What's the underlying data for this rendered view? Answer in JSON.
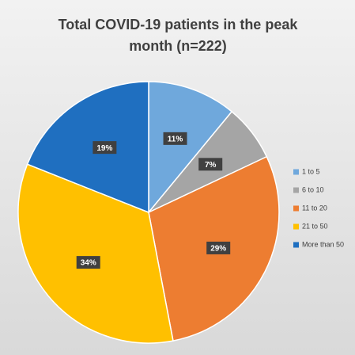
{
  "chart_data": {
    "type": "pie",
    "title": "Total COVID-19 patients in the peak month (n=222)",
    "categories": [
      "1 to 5",
      "6 to 10",
      "11 to 20",
      "21 to 50",
      "More than 50"
    ],
    "values": [
      11,
      7,
      29,
      34,
      19
    ],
    "value_labels": [
      "11%",
      "7%",
      "29%",
      "34%",
      "19%"
    ],
    "colors": [
      "#6fa8dc",
      "#a5a5a5",
      "#ed7d31",
      "#ffc000",
      "#1f6fc0"
    ],
    "legend": "right"
  }
}
